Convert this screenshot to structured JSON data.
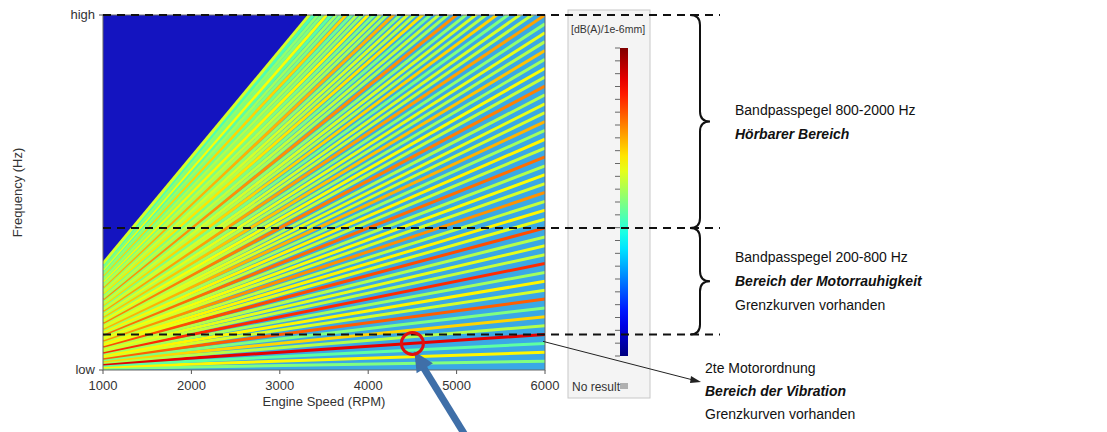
{
  "chart_data": {
    "type": "campbell",
    "x_label": "Engine Speed (RPM)",
    "y_label": "Frequency (Hz)",
    "xlim": [
      1000,
      6000
    ],
    "xticks": [
      1000,
      2000,
      3000,
      4000,
      5000,
      6000
    ],
    "ylim": [
      0,
      2000
    ],
    "yticks": [
      {
        "value": 0,
        "label": "low"
      },
      {
        "value": 2000,
        "label": "high"
      }
    ],
    "orders": [
      0.5,
      1,
      1.5,
      2,
      2.5,
      3,
      3.5,
      4,
      4.5,
      5,
      5.5,
      6,
      6.5,
      7,
      7.5,
      8,
      8.5,
      9,
      9.5,
      10,
      10.5,
      11,
      11.5,
      12,
      12.5,
      13,
      13.5,
      14,
      14.5,
      15,
      15.5,
      16,
      16.5,
      17,
      17.5,
      18,
      18.5,
      19,
      19.5,
      20,
      20.5,
      21,
      21.5,
      22,
      22.5,
      23,
      23.5,
      24,
      24.5,
      25,
      25.5,
      26,
      26.5,
      27,
      27.5,
      28,
      28.5,
      29,
      29.5,
      30,
      30.5,
      31,
      31.5,
      32,
      32.5,
      33,
      33.5,
      34,
      34.5,
      35,
      35.5,
      36
    ],
    "levels": [
      30,
      38,
      28,
      54,
      33,
      40,
      30,
      47,
      35,
      38,
      32,
      50,
      34,
      36,
      33,
      48,
      36,
      38,
      34,
      44,
      35,
      37,
      33,
      46,
      34,
      38,
      32,
      42,
      35,
      36,
      33,
      45,
      34,
      37,
      32,
      41,
      33,
      36,
      31,
      43,
      34,
      35,
      30,
      40,
      33,
      35,
      31,
      44,
      32,
      34,
      30,
      39,
      33,
      35,
      31,
      42,
      32,
      34,
      30,
      38,
      31,
      33,
      29,
      40,
      30,
      32,
      28,
      37,
      30,
      31,
      27,
      35
    ],
    "colorbar": {
      "label": "[dB(A)/1e-6mm]",
      "zlim": [
        0,
        60
      ],
      "zticks": [
        0,
        2.5,
        5,
        7.5,
        10,
        12.5,
        15,
        17.5,
        20,
        22.5,
        25,
        27.5,
        30,
        32.5,
        35,
        37.5,
        40,
        42.5,
        45,
        47.5,
        50,
        52.5,
        55,
        57.5,
        60
      ],
      "no_result_label": "No result"
    },
    "annotations": [
      {
        "band": [
          800,
          2000
        ],
        "text": "Bandpasspegel 800-2000 Hz",
        "emphasis": "Hörbarer Bereich"
      },
      {
        "band": [
          200,
          800
        ],
        "text": "Bandpasspegel 200-800 Hz",
        "emphasis": "Bereich der Motorrauhigkeit",
        "note": "Grenzkurven vorhanden"
      },
      {
        "order": 2,
        "x": 4500,
        "text": "2te Motorordnung",
        "emphasis": "Bereich der Vibration",
        "note": "Grenzkurven vorhanden"
      }
    ]
  }
}
